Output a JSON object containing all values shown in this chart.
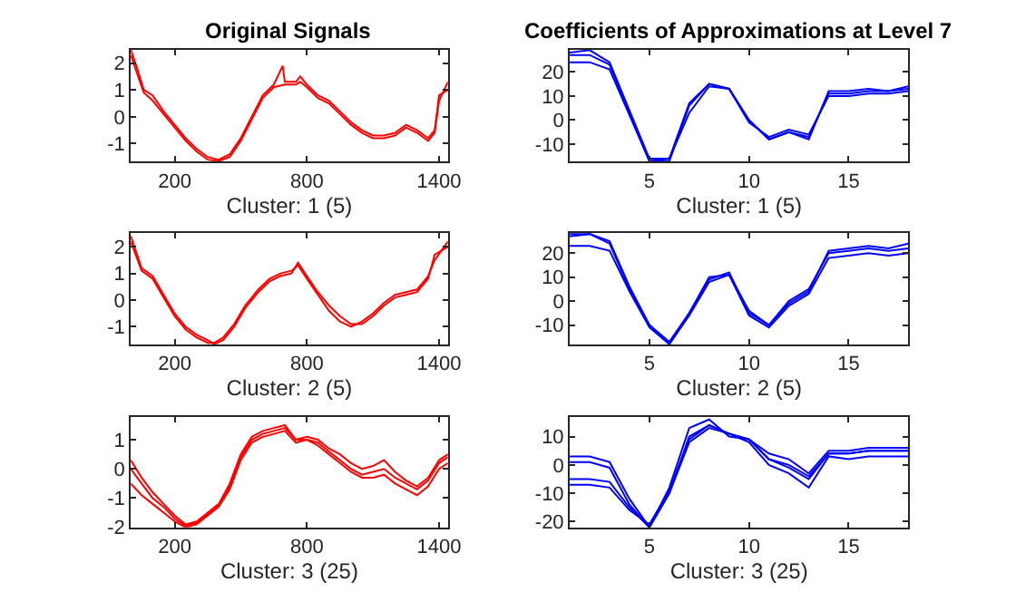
{
  "chart_data": [
    {
      "type": "line",
      "title": "Original Signals",
      "xlabel": "Cluster: 1 (5)",
      "xlim": [
        1,
        1440
      ],
      "xticks": [
        200,
        800,
        1400
      ],
      "ylim": [
        -1.67,
        2.5
      ],
      "yticks": [
        -1,
        0,
        1,
        2
      ],
      "series": [
        {
          "color": "#ff0000",
          "x": [
            1,
            30,
            60,
            100,
            150,
            200,
            250,
            300,
            350,
            400,
            450,
            500,
            550,
            600,
            650,
            690,
            700,
            750,
            770,
            800,
            850,
            900,
            950,
            1000,
            1050,
            1100,
            1150,
            1200,
            1250,
            1300,
            1350,
            1380,
            1400,
            1440
          ],
          "values": [
            2.5,
            1.8,
            1.0,
            0.8,
            0.2,
            -0.3,
            -0.8,
            -1.2,
            -1.5,
            -1.6,
            -1.4,
            -0.8,
            0.0,
            0.8,
            1.2,
            1.9,
            1.3,
            1.3,
            1.5,
            1.2,
            0.8,
            0.6,
            0.2,
            -0.2,
            -0.5,
            -0.7,
            -0.7,
            -0.6,
            -0.3,
            -0.5,
            -0.8,
            -0.5,
            0.8,
            1.0
          ]
        },
        {
          "color": "#ff0000",
          "x": [
            1,
            30,
            60,
            100,
            150,
            200,
            250,
            300,
            350,
            400,
            450,
            500,
            550,
            600,
            650,
            700,
            750,
            770,
            800,
            850,
            900,
            950,
            1000,
            1050,
            1100,
            1150,
            1200,
            1250,
            1300,
            1350,
            1380,
            1400,
            1440
          ],
          "values": [
            2.3,
            1.6,
            0.9,
            0.6,
            0.1,
            -0.4,
            -0.9,
            -1.3,
            -1.6,
            -1.65,
            -1.5,
            -0.9,
            -0.1,
            0.7,
            1.1,
            1.2,
            1.2,
            1.3,
            1.1,
            0.7,
            0.5,
            0.1,
            -0.3,
            -0.6,
            -0.8,
            -0.8,
            -0.7,
            -0.4,
            -0.6,
            -0.9,
            -0.6,
            0.6,
            1.3
          ]
        }
      ]
    },
    {
      "type": "line",
      "title": "Coefficients of Approximations at Level 7",
      "xlabel": "Cluster: 1 (5)",
      "xlim": [
        1,
        18
      ],
      "xticks": [
        5,
        10,
        15
      ],
      "ylim": [
        -17.2,
        29.2
      ],
      "yticks": [
        -10,
        0,
        10,
        20
      ],
      "series": [
        {
          "color": "#0000ff",
          "x": [
            1,
            2,
            3,
            4,
            5,
            6,
            7,
            8,
            9,
            10,
            11,
            12,
            13,
            14,
            15,
            16,
            17,
            18
          ],
          "values": [
            27,
            27,
            23,
            3,
            -17,
            -17,
            6,
            15,
            13,
            0,
            -8,
            -5,
            -7,
            11,
            11,
            12,
            12,
            13
          ]
        },
        {
          "color": "#0000ff",
          "x": [
            1,
            2,
            3,
            4,
            5,
            6,
            7,
            8,
            9,
            10,
            11,
            12,
            13,
            14,
            15,
            16,
            17,
            18
          ],
          "values": [
            24,
            24,
            21,
            2,
            -17,
            -16,
            3,
            14,
            13,
            -1,
            -7,
            -4,
            -6,
            10,
            10,
            11,
            11,
            12
          ]
        },
        {
          "color": "#0000ff",
          "x": [
            1,
            2,
            3,
            4,
            5,
            6,
            7,
            8,
            9,
            10,
            11,
            12,
            13,
            14,
            15,
            16,
            17,
            18
          ],
          "values": [
            28,
            29,
            24,
            4,
            -16,
            -16,
            7,
            15,
            13,
            0,
            -8,
            -5,
            -8,
            12,
            12,
            13,
            12,
            14
          ]
        }
      ]
    },
    {
      "type": "line",
      "xlabel": "Cluster: 2 (5)",
      "xlim": [
        1,
        1440
      ],
      "xticks": [
        200,
        800,
        1400
      ],
      "ylim": [
        -1.66,
        2.53
      ],
      "yticks": [
        -1,
        0,
        1,
        2
      ],
      "series": [
        {
          "color": "#ff0000",
          "x": [
            1,
            50,
            100,
            150,
            200,
            250,
            300,
            350,
            380,
            420,
            470,
            520,
            580,
            630,
            680,
            730,
            760,
            800,
            850,
            900,
            950,
            1000,
            1050,
            1100,
            1150,
            1200,
            1250,
            1300,
            1350,
            1380,
            1440
          ],
          "values": [
            2.4,
            1.2,
            0.9,
            0.2,
            -0.5,
            -1.0,
            -1.3,
            -1.5,
            -1.65,
            -1.5,
            -1.0,
            -0.3,
            0.3,
            0.7,
            0.9,
            1.0,
            1.4,
            0.9,
            0.3,
            -0.2,
            -0.6,
            -0.9,
            -0.9,
            -0.6,
            -0.2,
            0.1,
            0.2,
            0.3,
            0.8,
            1.7,
            2.0
          ]
        },
        {
          "color": "#ff0000",
          "x": [
            1,
            50,
            100,
            150,
            200,
            250,
            300,
            350,
            380,
            420,
            470,
            520,
            580,
            630,
            680,
            730,
            760,
            800,
            850,
            900,
            950,
            1000,
            1050,
            1100,
            1150,
            1200,
            1250,
            1300,
            1350,
            1380,
            1440
          ],
          "values": [
            2.2,
            1.1,
            0.8,
            0.1,
            -0.6,
            -1.1,
            -1.4,
            -1.6,
            -1.6,
            -1.4,
            -0.9,
            -0.2,
            0.4,
            0.8,
            1.0,
            1.1,
            1.3,
            0.8,
            0.2,
            -0.4,
            -0.8,
            -1.0,
            -0.8,
            -0.5,
            -0.1,
            0.2,
            0.3,
            0.4,
            0.9,
            1.5,
            2.2
          ]
        }
      ]
    },
    {
      "type": "line",
      "xlabel": "Cluster: 2 (5)",
      "xlim": [
        1,
        18
      ],
      "xticks": [
        5,
        10,
        15
      ],
      "ylim": [
        -18.1,
        28.6
      ],
      "yticks": [
        -10,
        0,
        10,
        20
      ],
      "series": [
        {
          "color": "#0000ff",
          "x": [
            1,
            2,
            3,
            4,
            5,
            6,
            7,
            8,
            9,
            10,
            11,
            12,
            13,
            14,
            15,
            16,
            17,
            18
          ],
          "values": [
            28,
            28,
            24,
            5,
            -10,
            -18,
            -5,
            10,
            11,
            -4,
            -10,
            -1,
            4,
            21,
            22,
            23,
            22,
            24
          ]
        },
        {
          "color": "#0000ff",
          "x": [
            1,
            2,
            3,
            4,
            5,
            6,
            7,
            8,
            9,
            10,
            11,
            12,
            13,
            14,
            15,
            16,
            17,
            18
          ],
          "values": [
            23,
            23,
            21,
            4,
            -11,
            -18,
            -6,
            8,
            11,
            -6,
            -11,
            -2,
            3,
            18,
            19,
            20,
            19,
            20
          ]
        },
        {
          "color": "#0000ff",
          "x": [
            1,
            2,
            3,
            4,
            5,
            6,
            7,
            8,
            9,
            10,
            11,
            12,
            13,
            14,
            15,
            16,
            17,
            18
          ],
          "values": [
            27,
            28,
            25,
            6,
            -10,
            -17,
            -5,
            9,
            12,
            -5,
            -10,
            0,
            5,
            20,
            21,
            22,
            21,
            22
          ]
        }
      ]
    },
    {
      "type": "line",
      "xlabel": "Cluster: 3 (25)",
      "xlim": [
        1,
        1440
      ],
      "xticks": [
        200,
        800,
        1400
      ],
      "ylim": [
        -2,
        1.77
      ],
      "yticks": [
        -2,
        -1,
        0,
        1
      ],
      "series": [
        {
          "color": "#ff0000",
          "x": [
            1,
            50,
            100,
            150,
            200,
            250,
            300,
            350,
            400,
            450,
            500,
            550,
            600,
            650,
            700,
            750,
            800,
            850,
            900,
            950,
            1000,
            1050,
            1100,
            1150,
            1200,
            1250,
            1300,
            1350,
            1400,
            1440
          ],
          "values": [
            0.3,
            -0.3,
            -0.8,
            -1.2,
            -1.6,
            -1.9,
            -1.8,
            -1.5,
            -1.2,
            -0.5,
            0.5,
            1.1,
            1.3,
            1.4,
            1.5,
            1.0,
            1.1,
            1.0,
            0.7,
            0.5,
            0.2,
            0.0,
            0.1,
            0.3,
            -0.1,
            -0.4,
            -0.6,
            -0.3,
            0.3,
            0.5
          ]
        },
        {
          "color": "#ff0000",
          "x": [
            1,
            50,
            100,
            150,
            200,
            250,
            300,
            350,
            400,
            450,
            500,
            550,
            600,
            650,
            700,
            750,
            800,
            850,
            900,
            950,
            1000,
            1050,
            1100,
            1150,
            1200,
            1250,
            1300,
            1350,
            1400,
            1440
          ],
          "values": [
            -0.5,
            -0.9,
            -1.2,
            -1.5,
            -1.8,
            -2.0,
            -1.9,
            -1.6,
            -1.3,
            -0.7,
            0.3,
            0.9,
            1.1,
            1.2,
            1.3,
            0.9,
            1.0,
            0.8,
            0.5,
            0.2,
            -0.1,
            -0.3,
            -0.3,
            -0.2,
            -0.5,
            -0.7,
            -0.9,
            -0.6,
            0.0,
            0.2
          ]
        },
        {
          "color": "#ff0000",
          "x": [
            1,
            50,
            100,
            150,
            200,
            250,
            300,
            350,
            400,
            450,
            500,
            550,
            600,
            650,
            700,
            750,
            800,
            850,
            900,
            950,
            1000,
            1050,
            1100,
            1150,
            1200,
            1250,
            1300,
            1350,
            1400,
            1440
          ],
          "values": [
            0.0,
            -0.5,
            -1.0,
            -1.3,
            -1.7,
            -1.95,
            -1.85,
            -1.55,
            -1.25,
            -0.6,
            0.4,
            1.0,
            1.2,
            1.3,
            1.4,
            1.0,
            1.0,
            0.9,
            0.6,
            0.3,
            0.0,
            -0.2,
            -0.1,
            0.0,
            -0.3,
            -0.5,
            -0.7,
            -0.4,
            0.2,
            0.4
          ]
        }
      ]
    },
    {
      "type": "line",
      "xlabel": "Cluster: 3 (25)",
      "xlim": [
        1,
        18
      ],
      "xticks": [
        5,
        10,
        15
      ],
      "ylim": [
        -22,
        16.8
      ],
      "yticks": [
        -20,
        -10,
        0,
        10
      ],
      "series": [
        {
          "color": "#0000ff",
          "x": [
            1,
            2,
            3,
            4,
            5,
            6,
            7,
            8,
            9,
            10,
            11,
            12,
            13,
            14,
            15,
            16,
            17,
            18
          ],
          "values": [
            3,
            3,
            1,
            -12,
            -22,
            -8,
            13,
            16,
            10,
            9,
            4,
            2,
            -3,
            5,
            5,
            6,
            6,
            6
          ]
        },
        {
          "color": "#0000ff",
          "x": [
            1,
            2,
            3,
            4,
            5,
            6,
            7,
            8,
            9,
            10,
            11,
            12,
            13,
            14,
            15,
            16,
            17,
            18
          ],
          "values": [
            1,
            1,
            -1,
            -14,
            -22,
            -10,
            8,
            13,
            11,
            8,
            0,
            -3,
            -8,
            3,
            2,
            3,
            3,
            3
          ]
        },
        {
          "color": "#0000ff",
          "x": [
            1,
            2,
            3,
            4,
            5,
            6,
            7,
            8,
            9,
            10,
            11,
            12,
            13,
            14,
            15,
            16,
            17,
            18
          ],
          "values": [
            -5,
            -5,
            -6,
            -15,
            -22,
            -10,
            10,
            14,
            11,
            9,
            2,
            -1,
            -5,
            4,
            4,
            5,
            5,
            5
          ]
        },
        {
          "color": "#0000ff",
          "x": [
            1,
            2,
            3,
            4,
            5,
            6,
            7,
            8,
            9,
            10,
            11,
            12,
            13,
            14,
            15,
            16,
            17,
            18
          ],
          "values": [
            -7,
            -7,
            -8,
            -16,
            -21,
            -9,
            9,
            14,
            11,
            9,
            2,
            0,
            -4,
            4,
            4,
            5,
            5,
            5
          ]
        }
      ]
    }
  ]
}
